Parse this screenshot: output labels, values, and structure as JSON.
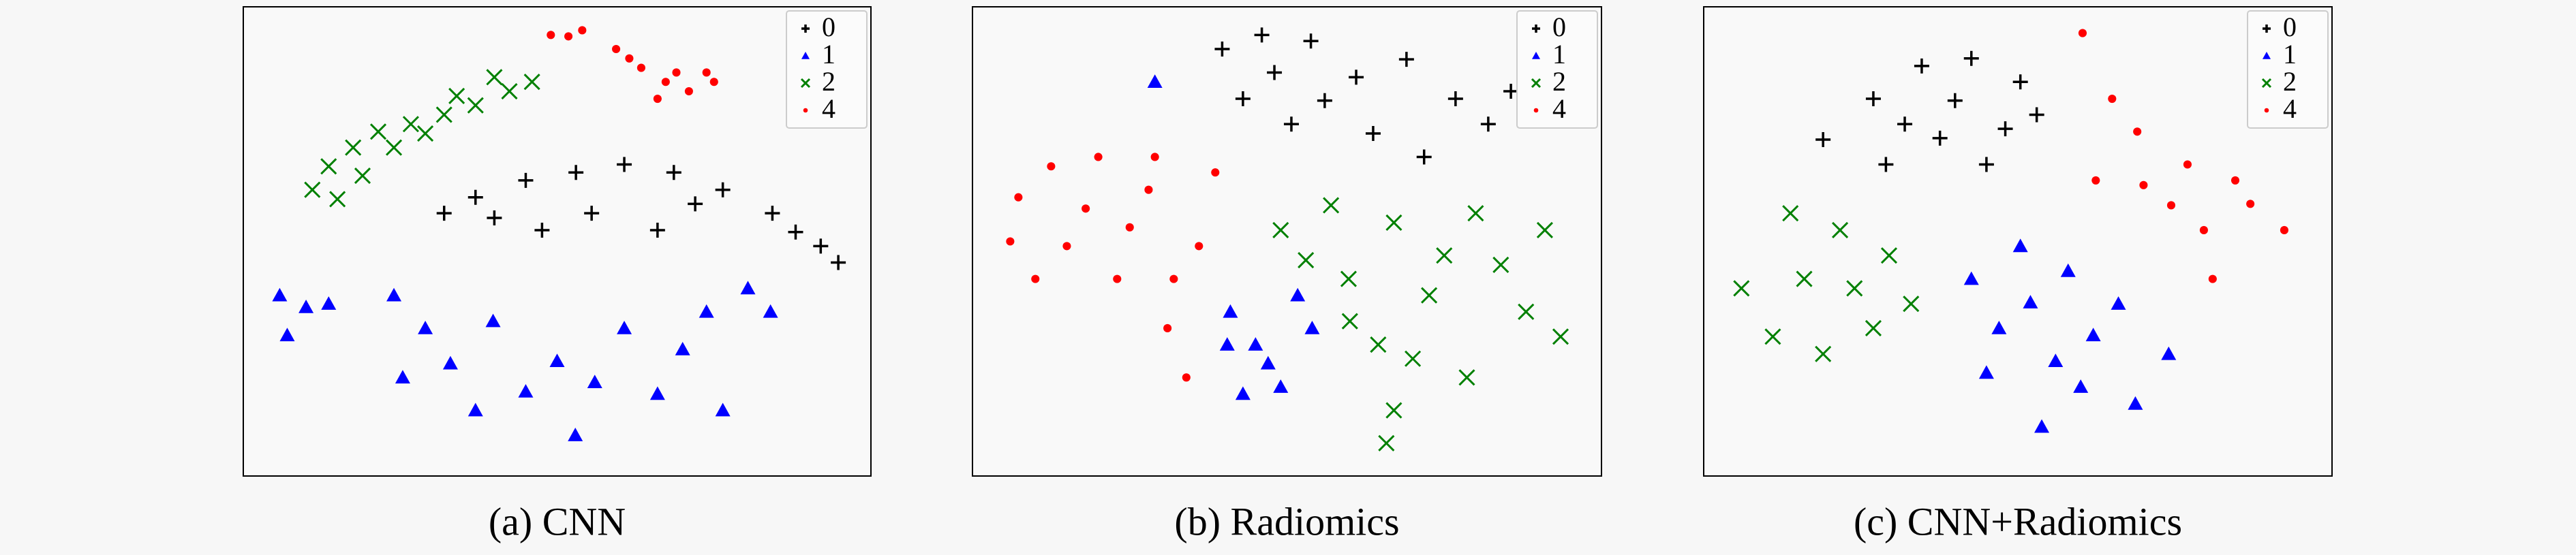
{
  "chart_data": [
    {
      "type": "scatter",
      "caption": "(a) CNN",
      "xlim": [
        0,
        100
      ],
      "ylim": [
        0,
        100
      ],
      "legend": "upper right",
      "series": [
        {
          "name": "0",
          "color": "#000000",
          "marker": "plus",
          "x": [
            32,
            37,
            45,
            53,
            60.7,
            68.6,
            76.4,
            84.3,
            92,
            94.8,
            47.6,
            66,
            55.5,
            40,
            72,
            88
          ],
          "y": [
            56,
            59.4,
            63,
            64.7,
            66.4,
            64.7,
            61,
            56,
            49,
            45.5,
            52.4,
            52.4,
            56,
            55,
            58,
            52
          ]
        },
        {
          "name": "1",
          "color": "#0000ff",
          "marker": "triangle",
          "x": [
            5.8,
            7,
            13.6,
            24,
            25.4,
            29,
            37,
            39.8,
            50,
            52.9,
            60.7,
            66,
            73.8,
            76.4,
            80.4,
            10,
            45,
            56,
            70,
            33,
            84
          ],
          "y": [
            38.5,
            30,
            36.7,
            38.5,
            21,
            31.5,
            14,
            33,
            24.5,
            8.7,
            31.5,
            17.5,
            35,
            14,
            40,
            36,
            18,
            20,
            27,
            24,
            35
          ]
        },
        {
          "name": "2",
          "color": "#008000",
          "marker": "cross",
          "x": [
            11,
            13.6,
            17.5,
            21.5,
            26.7,
            32,
            37,
            42.4,
            46,
            15,
            24,
            29,
            34,
            40,
            19
          ],
          "y": [
            61,
            66,
            70,
            73.4,
            75,
            77,
            79,
            82,
            84,
            59,
            70,
            73,
            81,
            85,
            64
          ]
        },
        {
          "name": "4",
          "color": "#ff0000",
          "marker": "dot",
          "x": [
            49,
            51.8,
            54,
            59.4,
            63.4,
            67.3,
            71,
            73.8,
            66,
            61.5,
            69,
            75
          ],
          "y": [
            94,
            93.7,
            95,
            91,
            87,
            84,
            82,
            86,
            80.4,
            89,
            86,
            84
          ]
        }
      ]
    },
    {
      "type": "scatter",
      "caption": "(b) Radiomics",
      "xlim": [
        0,
        100
      ],
      "ylim": [
        0,
        100
      ],
      "legend": "upper right",
      "series": [
        {
          "name": "0",
          "color": "#000000",
          "marker": "plus",
          "x": [
            39.7,
            46,
            53.8,
            43,
            50.7,
            61,
            69,
            76.8,
            82,
            71.8,
            63.7,
            85.6,
            56,
            48
          ],
          "y": [
            91,
            94,
            92.7,
            80.4,
            75,
            85,
            88.8,
            80.4,
            75,
            68,
            73,
            82,
            80,
            86
          ]
        },
        {
          "name": "1",
          "color": "#0000ff",
          "marker": "triangle",
          "x": [
            29,
            41,
            45,
            49,
            54,
            51.7,
            43,
            47,
            40.5
          ],
          "y": [
            84,
            35,
            28,
            19,
            31.5,
            38.5,
            17.5,
            24,
            28
          ]
        },
        {
          "name": "2",
          "color": "#008000",
          "marker": "cross",
          "x": [
            49,
            57,
            67,
            80,
            91,
            59.8,
            72.6,
            88,
            93.5,
            64.5,
            67,
            65.8,
            78.6,
            53,
            75,
            84,
            60,
            70
          ],
          "y": [
            52.4,
            57.7,
            54,
            56,
            52.4,
            42,
            38.5,
            35,
            29.7,
            28,
            14,
            7,
            21,
            46,
            47,
            45,
            33,
            25
          ]
        },
        {
          "name": "4",
          "color": "#ff0000",
          "marker": "dot",
          "x": [
            7.3,
            12.5,
            20,
            28,
            36,
            15,
            23,
            31,
            34,
            10,
            29,
            38.6,
            18,
            25,
            32,
            6
          ],
          "y": [
            59.4,
            66,
            68,
            61,
            49,
            49,
            42,
            31.5,
            21,
            42,
            68,
            64.7,
            57,
            53,
            42,
            50
          ]
        }
      ]
    },
    {
      "type": "scatter",
      "caption": "(c) CNN+Radiomics",
      "xlim": [
        0,
        100
      ],
      "ylim": [
        0,
        100
      ],
      "legend": "upper right",
      "series": [
        {
          "name": "0",
          "color": "#000000",
          "marker": "plus",
          "x": [
            19,
            27,
            34.7,
            42.6,
            50.4,
            37.6,
            45,
            29,
            53,
            40,
            32,
            48
          ],
          "y": [
            71.7,
            80.4,
            87.4,
            89,
            84,
            72,
            66.4,
            66.4,
            77,
            80,
            75,
            74
          ]
        },
        {
          "name": "1",
          "color": "#0000ff",
          "marker": "triangle",
          "x": [
            42.6,
            50.4,
            58,
            66,
            74,
            56,
            47,
            53.8,
            68.7,
            62,
            52,
            45,
            60
          ],
          "y": [
            42,
            49,
            43.7,
            36.7,
            26,
            24.5,
            31.5,
            10.5,
            15.4,
            30,
            37,
            22,
            19
          ]
        },
        {
          "name": "2",
          "color": "#008000",
          "marker": "cross",
          "x": [
            6,
            13.8,
            21.7,
            29.5,
            33,
            11,
            19,
            27,
            16,
            24
          ],
          "y": [
            40,
            56,
            52.4,
            47,
            36.7,
            29.7,
            26,
            31.5,
            42,
            40
          ]
        },
        {
          "name": "4",
          "color": "#ff0000",
          "marker": "dot",
          "x": [
            60.3,
            65,
            69,
            77,
            84.6,
            92.4,
            79.6,
            74.4,
            62.4,
            81,
            70,
            87
          ],
          "y": [
            94.4,
            80.4,
            73.4,
            66.4,
            63,
            52.4,
            52.4,
            57.7,
            63,
            42,
            62,
            58
          ]
        }
      ]
    }
  ]
}
